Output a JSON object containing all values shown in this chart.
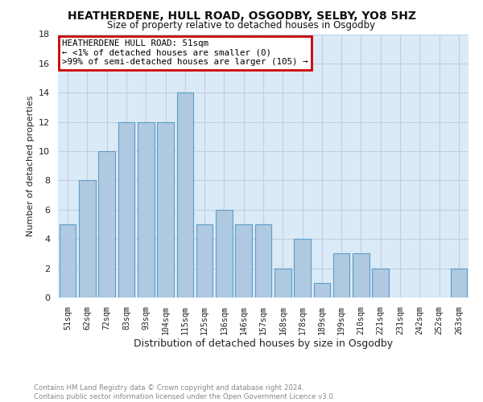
{
  "title": "HEATHERDENE, HULL ROAD, OSGODBY, SELBY, YO8 5HZ",
  "subtitle": "Size of property relative to detached houses in Osgodby",
  "xlabel": "Distribution of detached houses by size in Osgodby",
  "ylabel": "Number of detached properties",
  "categories": [
    "51sqm",
    "62sqm",
    "72sqm",
    "83sqm",
    "93sqm",
    "104sqm",
    "115sqm",
    "125sqm",
    "136sqm",
    "146sqm",
    "157sqm",
    "168sqm",
    "178sqm",
    "189sqm",
    "199sqm",
    "210sqm",
    "221sqm",
    "231sqm",
    "242sqm",
    "252sqm",
    "263sqm"
  ],
  "values": [
    5,
    8,
    10,
    12,
    12,
    12,
    14,
    5,
    6,
    5,
    5,
    2,
    4,
    1,
    3,
    3,
    2,
    0,
    0,
    0,
    2
  ],
  "bar_color": "#afc9e1",
  "bar_edge_color": "#5b9ec9",
  "annotation_line1": "HEATHERDENE HULL ROAD: 51sqm",
  "annotation_line2": "← <1% of detached houses are smaller (0)",
  "annotation_line3": ">99% of semi-detached houses are larger (105) →",
  "annotation_box_color": "#cc0000",
  "ylim": [
    0,
    18
  ],
  "yticks": [
    0,
    2,
    4,
    6,
    8,
    10,
    12,
    14,
    16,
    18
  ],
  "footnote": "Contains HM Land Registry data © Crown copyright and database right 2024.\nContains public sector information licensed under the Open Government Licence v3.0.",
  "background_color": "#ffffff",
  "plot_bg_color": "#daeaf7",
  "grid_color": "#c0d0e0"
}
